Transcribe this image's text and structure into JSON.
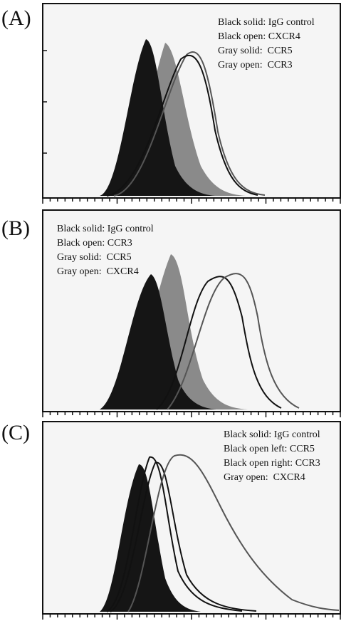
{
  "panels": [
    {
      "label": "(A)",
      "legend": [
        "Black solid: IgG control",
        "Black open: CXCR4",
        "Gray solid:  CCR5",
        "Gray open:  CCR3"
      ]
    },
    {
      "label": "(B)",
      "legend": [
        "Black solid: IgG control",
        "Black open: CCR3",
        "Gray solid:  CCR5",
        "Gray open:  CXCR4"
      ]
    },
    {
      "label": "(C)",
      "legend": [
        "Black solid: IgG control",
        "Black open left: CCR5",
        "Black open right: CCR3",
        "Gray open:  CXCR4"
      ]
    }
  ]
}
